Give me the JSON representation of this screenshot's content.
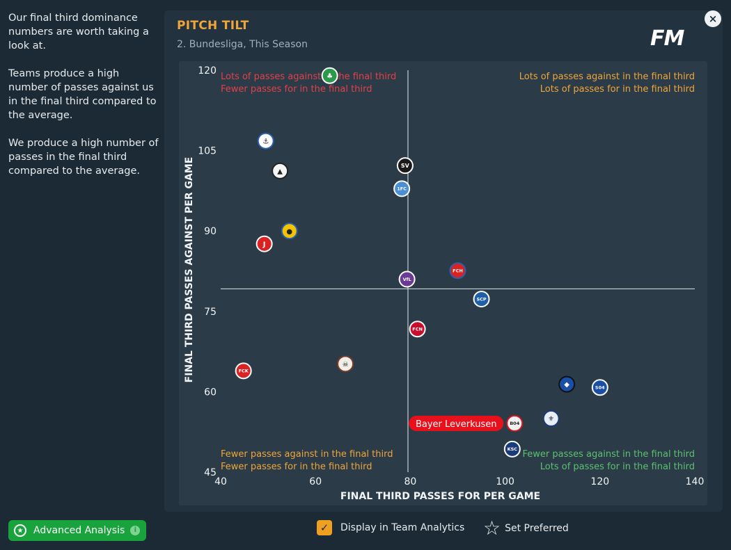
{
  "sidebar": {
    "paragraphs": [
      "Our final third dominance numbers are worth taking a look at.",
      "Teams produce a high number of passes against us in the final third compared to the average.",
      "We produce a high number of passes in the final third compared to the average."
    ]
  },
  "panel": {
    "title": "PITCH TILT",
    "subtitle": "2. Bundesliga, This Season",
    "logo": "FM",
    "close_icon": "×"
  },
  "chart_data": {
    "type": "scatter",
    "xlabel": "FINAL THIRD PASSES FOR PER GAME",
    "ylabel": "FINAL THIRD PASSES AGAINST PER GAME",
    "xlim": [
      40,
      140
    ],
    "ylim": [
      45,
      120
    ],
    "x_ticks": [
      "40",
      "60",
      "80",
      "100",
      "120",
      "140"
    ],
    "y_ticks": [
      "45",
      "60",
      "75",
      "90",
      "105",
      "120"
    ],
    "reference_lines": {
      "x": 79.5,
      "y": 79.2
    },
    "quadrant_labels": {
      "top_left": [
        "Lots of passes against in the final third",
        "Fewer passes for in the final third"
      ],
      "top_right": [
        "Lots of passes against in the final third",
        "Lots of passes for in the final third"
      ],
      "bottom_left": [
        "Fewer passes against in the final third",
        "Fewer passes for in the final third"
      ],
      "bottom_right": [
        "Fewer passes against in the final third",
        "Lots of passes for in the final third"
      ]
    },
    "quadrant_colors": {
      "top_left": "#e0404a",
      "top_right": "#f0a53a",
      "bottom_left": "#f0a53a",
      "bottom_right": "#5cc070"
    },
    "highlight_label": "Bayer Leverkusen",
    "points": [
      {
        "x": 63.0,
        "y": 119.0,
        "color": "#2a9a4a",
        "ring": "#ffffff",
        "mark": "♣",
        "highlight": false
      },
      {
        "x": 49.5,
        "y": 106.8,
        "color": "#ffffff",
        "ring": "#2a5fb0",
        "mark": "⚓",
        "highlight": false
      },
      {
        "x": 52.5,
        "y": 101.2,
        "color": "#f4f4f4",
        "ring": "#222222",
        "mark": "▲",
        "highlight": false
      },
      {
        "x": 78.9,
        "y": 102.2,
        "color": "#1a1a1a",
        "ring": "#ffffff",
        "mark": "SV",
        "highlight": false
      },
      {
        "x": 78.2,
        "y": 97.9,
        "color": "#4a8fd4",
        "ring": "#ffffff",
        "mark": "1FC",
        "highlight": false
      },
      {
        "x": 54.5,
        "y": 90.0,
        "color": "#f2c400",
        "ring": "#2a5fb0",
        "mark": "●",
        "highlight": false
      },
      {
        "x": 49.2,
        "y": 87.6,
        "color": "#d92323",
        "ring": "#ffffff",
        "mark": "J",
        "highlight": false
      },
      {
        "x": 90.0,
        "y": 82.6,
        "color": "#d92323",
        "ring": "#2a5fb0",
        "mark": "FCH",
        "highlight": false
      },
      {
        "x": 79.3,
        "y": 81.0,
        "color": "#6a3a94",
        "ring": "#ffffff",
        "mark": "VfL",
        "highlight": false
      },
      {
        "x": 95.0,
        "y": 77.3,
        "color": "#1e5fa8",
        "ring": "#ffffff",
        "mark": "SCP",
        "highlight": false
      },
      {
        "x": 81.5,
        "y": 71.7,
        "color": "#c8102e",
        "ring": "#ffffff",
        "mark": "FCN",
        "highlight": false
      },
      {
        "x": 44.8,
        "y": 63.9,
        "color": "#d92323",
        "ring": "#ffffff",
        "mark": "FCK",
        "highlight": false
      },
      {
        "x": 66.3,
        "y": 65.2,
        "color": "#f2eee8",
        "ring": "#7a3b2a",
        "mark": "☠",
        "highlight": false
      },
      {
        "x": 113.0,
        "y": 61.4,
        "color": "#1a4fa8",
        "ring": "#111111",
        "mark": "◆",
        "highlight": false
      },
      {
        "x": 120.0,
        "y": 60.8,
        "color": "#1a4fa8",
        "ring": "#ffffff",
        "mark": "S04",
        "highlight": false
      },
      {
        "x": 109.7,
        "y": 55.0,
        "color": "#e8eef8",
        "ring": "#1a3a7a",
        "mark": "⚜",
        "highlight": false
      },
      {
        "x": 102.0,
        "y": 54.1,
        "color": "#f2f2f2",
        "ring": "#d4151d",
        "mark": "B04",
        "highlight": true
      },
      {
        "x": 101.5,
        "y": 49.3,
        "color": "#1a3a7a",
        "ring": "#ffffff",
        "mark": "KSC",
        "highlight": false
      }
    ]
  },
  "footer": {
    "advanced_analysis_label": "Advanced Analysis",
    "display_label": "Display in Team Analytics",
    "display_checked": true,
    "set_preferred_label": "Set Preferred"
  }
}
